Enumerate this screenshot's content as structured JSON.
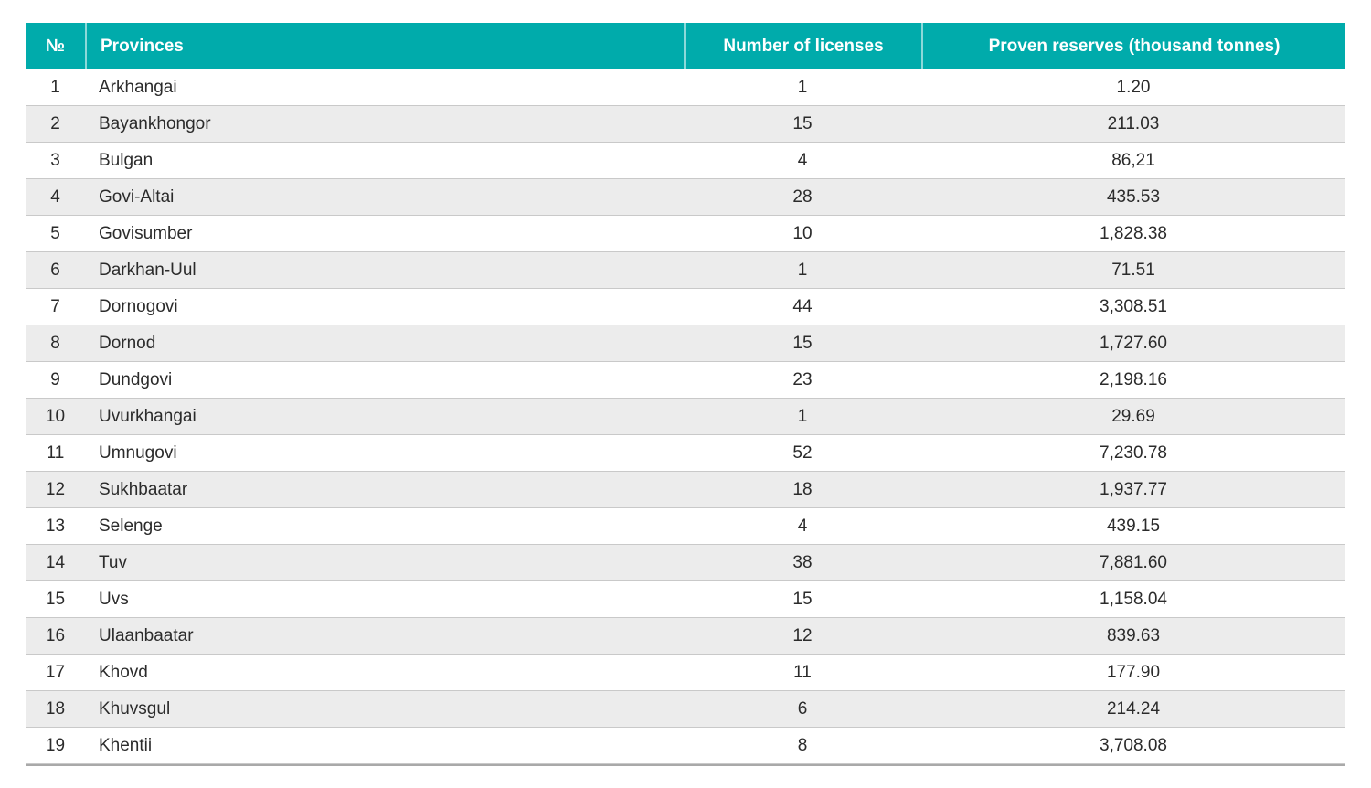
{
  "table": {
    "columns": [
      {
        "key": "no",
        "label": "№"
      },
      {
        "key": "province",
        "label": "Provinces"
      },
      {
        "key": "licenses",
        "label": "Number of licenses"
      },
      {
        "key": "reserves",
        "label": "Proven reserves (thousand tonnes)"
      }
    ],
    "rows": [
      {
        "no": "1",
        "province": "Arkhangai",
        "licenses": "1",
        "reserves": "1.20"
      },
      {
        "no": "2",
        "province": "Bayankhongor",
        "licenses": "15",
        "reserves": "211.03"
      },
      {
        "no": "3",
        "province": "Bulgan",
        "licenses": "4",
        "reserves": "86,21"
      },
      {
        "no": "4",
        "province": "Govi-Altai",
        "licenses": "28",
        "reserves": "435.53"
      },
      {
        "no": "5",
        "province": "Govisumber",
        "licenses": "10",
        "reserves": "1,828.38"
      },
      {
        "no": "6",
        "province": "Darkhan-Uul",
        "licenses": "1",
        "reserves": "71.51"
      },
      {
        "no": "7",
        "province": "Dornogovi",
        "licenses": "44",
        "reserves": "3,308.51"
      },
      {
        "no": "8",
        "province": "Dornod",
        "licenses": "15",
        "reserves": "1,727.60"
      },
      {
        "no": "9",
        "province": "Dundgovi",
        "licenses": "23",
        "reserves": "2,198.16"
      },
      {
        "no": "10",
        "province": "Uvurkhangai",
        "licenses": "1",
        "reserves": "29.69"
      },
      {
        "no": "11",
        "province": "Umnugovi",
        "licenses": "52",
        "reserves": "7,230.78"
      },
      {
        "no": "12",
        "province": "Sukhbaatar",
        "licenses": "18",
        "reserves": "1,937.77"
      },
      {
        "no": "13",
        "province": "Selenge",
        "licenses": "4",
        "reserves": "439.15"
      },
      {
        "no": "14",
        "province": "Tuv",
        "licenses": "38",
        "reserves": "7,881.60"
      },
      {
        "no": "15",
        "province": "Uvs",
        "licenses": "15",
        "reserves": "1,158.04"
      },
      {
        "no": "16",
        "province": "Ulaanbaatar",
        "licenses": "12",
        "reserves": "839.63"
      },
      {
        "no": "17",
        "province": "Khovd",
        "licenses": "11",
        "reserves": "177.90"
      },
      {
        "no": "18",
        "province": "Khuvsgul",
        "licenses": "6",
        "reserves": "214.24"
      },
      {
        "no": "19",
        "province": "Khentii",
        "licenses": "8",
        "reserves": "3,708.08"
      }
    ]
  },
  "colors": {
    "header_bg": "#00abab",
    "header_text": "#ffffff",
    "stripe_bg": "#ececec",
    "row_border": "#c9c9c9",
    "body_text": "#2b2b2b"
  }
}
